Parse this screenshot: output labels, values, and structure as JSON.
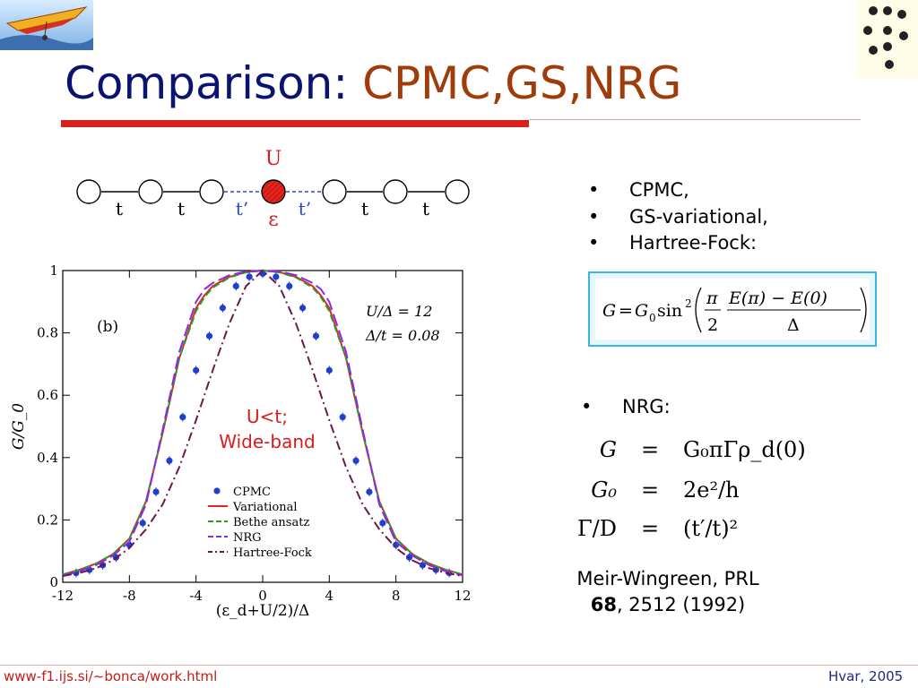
{
  "title": {
    "main": "Comparison: ",
    "accent": "CPMC,GS,NRG"
  },
  "chain": {
    "U_label": "U",
    "epsilon_label": "ε",
    "hopping_labels": [
      "t",
      "t",
      "t’",
      "t’",
      "t",
      "t"
    ]
  },
  "bullets_top": [
    "CPMC,",
    "GS-variational,",
    "Hartree-Fock:"
  ],
  "formula_box": {
    "lhs": "G",
    "eq": "=",
    "g0": "G",
    "g0_sub": "0",
    "sin": "sin",
    "sin_sup": "2",
    "pi": "π",
    "two": "2",
    "numerator": "E(π) − E(0)",
    "denominator": "Δ"
  },
  "bullet_nrg": "NRG:",
  "nrg_equations": [
    {
      "lhs": "G",
      "rhs": "G₀πΓρ_d(0)"
    },
    {
      "lhs": "G₀",
      "rhs": "2e²/h"
    },
    {
      "lhs": "Γ/D",
      "rhs": "(t′/t)²"
    }
  ],
  "reference": {
    "line1": "Meir-Wingreen, PRL",
    "volume": "68",
    "rest": ", 2512 (1992)"
  },
  "footer": {
    "url": "www-f1.ijs.si/~bonca/work.html",
    "right": "Hvar, 2005"
  },
  "colors": {
    "title": "#0a1470",
    "accent": "#a03c0a",
    "rule": "#d8201c",
    "cpmc": "#1f3fd0",
    "variational": "#e8231c",
    "bethe": "#2a9a2a",
    "nrg": "#8a2be2",
    "hartree_fock": "#6a1a4a"
  },
  "chart_data": {
    "type": "line",
    "panel_label": "(b)",
    "xlabel": "(ε_d+U/2)/Δ",
    "ylabel": "G/G_0",
    "xlim": [
      -12,
      12
    ],
    "ylim": [
      0,
      1
    ],
    "xticks": [
      -12,
      -8,
      -4,
      0,
      4,
      8,
      12
    ],
    "yticks": [
      0,
      0.2,
      0.4,
      0.6,
      0.8,
      1
    ],
    "param_lines": [
      "U/Δ = 12",
      "Δ/t = 0.08"
    ],
    "annotation": [
      "U<t;",
      "Wide-band"
    ],
    "legend_position": "bottom-left",
    "series": [
      {
        "name": "CPMC",
        "style": "points",
        "x": [
          -11.2,
          -10.4,
          -9.6,
          -8.8,
          -8,
          -7.2,
          -6.4,
          -5.6,
          -4.8,
          -4,
          -3.2,
          -2.4,
          -1.6,
          -0.8,
          0,
          0.8,
          1.6,
          2.4,
          3.2,
          4,
          4.8,
          5.6,
          6.4,
          7.2,
          8,
          8.8,
          9.6,
          10.4,
          11.2
        ],
        "y": [
          0.03,
          0.04,
          0.055,
          0.08,
          0.12,
          0.19,
          0.29,
          0.39,
          0.53,
          0.68,
          0.79,
          0.88,
          0.95,
          0.98,
          0.99,
          0.98,
          0.95,
          0.88,
          0.79,
          0.68,
          0.53,
          0.39,
          0.29,
          0.19,
          0.12,
          0.08,
          0.055,
          0.04,
          0.03
        ]
      },
      {
        "name": "Variational",
        "style": "solid",
        "x": [
          -12,
          -11,
          -10,
          -9,
          -8,
          -7,
          -6,
          -5,
          -4,
          -3.5,
          -3,
          -2,
          -1,
          0,
          1,
          2,
          3,
          3.5,
          4,
          5,
          6,
          7,
          8,
          9,
          10,
          11,
          12
        ],
        "y": [
          0.025,
          0.04,
          0.06,
          0.09,
          0.14,
          0.26,
          0.48,
          0.72,
          0.88,
          0.92,
          0.95,
          0.98,
          0.995,
          1,
          0.995,
          0.98,
          0.95,
          0.92,
          0.88,
          0.72,
          0.48,
          0.26,
          0.14,
          0.09,
          0.06,
          0.04,
          0.025
        ]
      },
      {
        "name": "Bethe ansatz",
        "style": "dashed",
        "x": [
          -12,
          -11,
          -10,
          -9,
          -8,
          -7,
          -6,
          -5,
          -4,
          -3.5,
          -3,
          -2,
          -1,
          0,
          1,
          2,
          3,
          3.5,
          4,
          5,
          6,
          7,
          8,
          9,
          10,
          11,
          12
        ],
        "y": [
          0.025,
          0.04,
          0.06,
          0.09,
          0.14,
          0.26,
          0.48,
          0.72,
          0.87,
          0.915,
          0.945,
          0.978,
          0.994,
          1,
          0.994,
          0.978,
          0.945,
          0.915,
          0.87,
          0.72,
          0.48,
          0.26,
          0.14,
          0.09,
          0.06,
          0.04,
          0.025
        ]
      },
      {
        "name": "NRG",
        "style": "longdash",
        "x": [
          -12,
          -11,
          -10,
          -9,
          -8,
          -7,
          -6,
          -5,
          -4,
          -3.5,
          -3,
          -2,
          -1,
          0,
          1,
          2,
          3,
          3.5,
          4,
          5,
          6,
          7,
          8,
          9,
          10,
          11,
          12
        ],
        "y": [
          0.022,
          0.035,
          0.055,
          0.085,
          0.13,
          0.25,
          0.49,
          0.74,
          0.9,
          0.94,
          0.96,
          0.985,
          0.997,
          1,
          0.997,
          0.985,
          0.96,
          0.94,
          0.9,
          0.74,
          0.49,
          0.25,
          0.13,
          0.085,
          0.055,
          0.035,
          0.022
        ]
      },
      {
        "name": "Hartree-Fock",
        "style": "dashdot",
        "x": [
          -12,
          -11,
          -10,
          -9,
          -8,
          -7,
          -6,
          -5,
          -4,
          -3,
          -2,
          -1,
          0,
          1,
          2,
          3,
          4,
          5,
          6,
          7,
          8,
          9,
          10,
          11,
          12
        ],
        "y": [
          0.02,
          0.03,
          0.045,
          0.07,
          0.11,
          0.17,
          0.25,
          0.37,
          0.52,
          0.68,
          0.83,
          0.95,
          1,
          0.95,
          0.83,
          0.68,
          0.52,
          0.37,
          0.25,
          0.17,
          0.11,
          0.07,
          0.045,
          0.03,
          0.02
        ]
      }
    ]
  }
}
